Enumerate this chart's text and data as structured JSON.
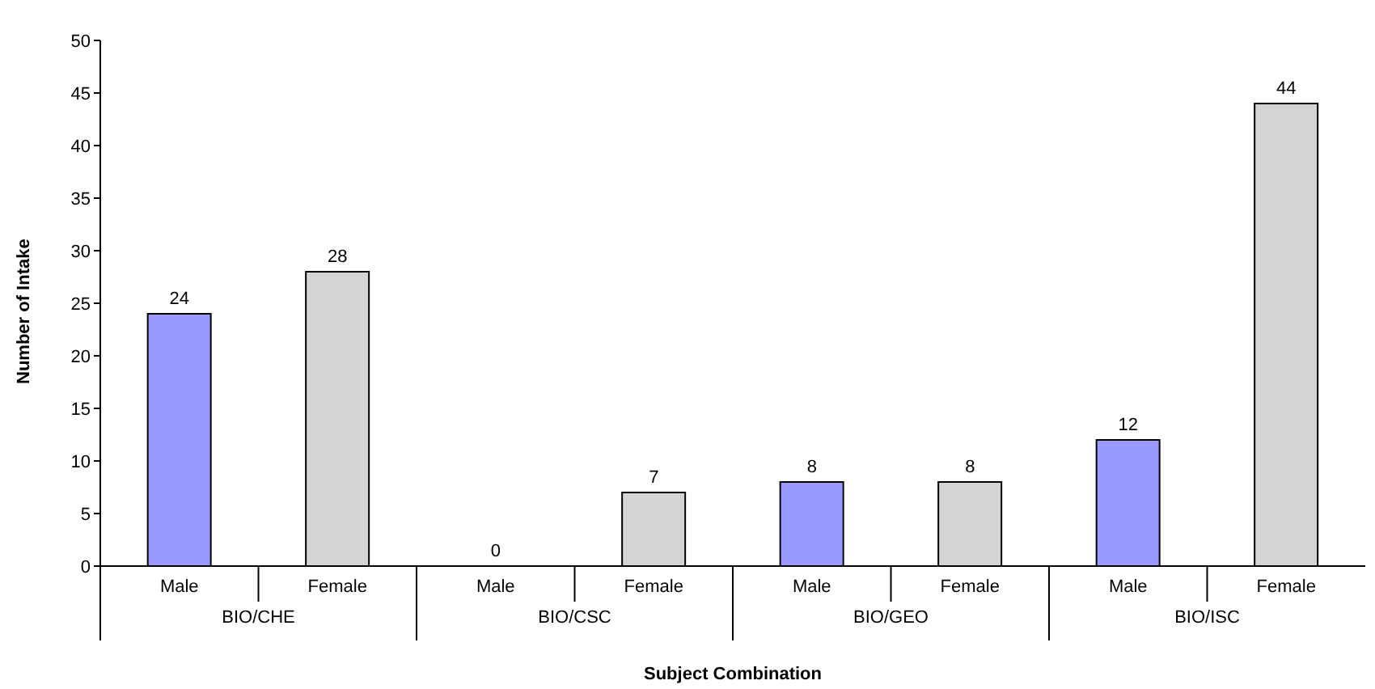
{
  "chart_data": {
    "type": "bar",
    "xlabel": "Subject Combination",
    "ylabel": "Number of Intake",
    "categories": [
      "Male",
      "Female",
      "Male",
      "Female",
      "Male",
      "Female",
      "Male",
      "Female"
    ],
    "values": [
      24,
      28,
      0,
      7,
      8,
      8,
      12,
      44
    ],
    "colors": [
      "#9999ff",
      "#d4d4d4",
      "#9999ff",
      "#d4d4d4",
      "#9999ff",
      "#d4d4d4",
      "#9999ff",
      "#d4d4d4"
    ],
    "annotations": [
      "BIO/CHE",
      "BIO/CSC",
      "BIO/GEO",
      "BIO/ISC"
    ],
    "ylim": [
      0,
      50
    ],
    "yticks": [
      0,
      5,
      10,
      15,
      20,
      25,
      30,
      35,
      40,
      45,
      50
    ],
    "data_labels": true,
    "grid": false,
    "legend": false
  }
}
